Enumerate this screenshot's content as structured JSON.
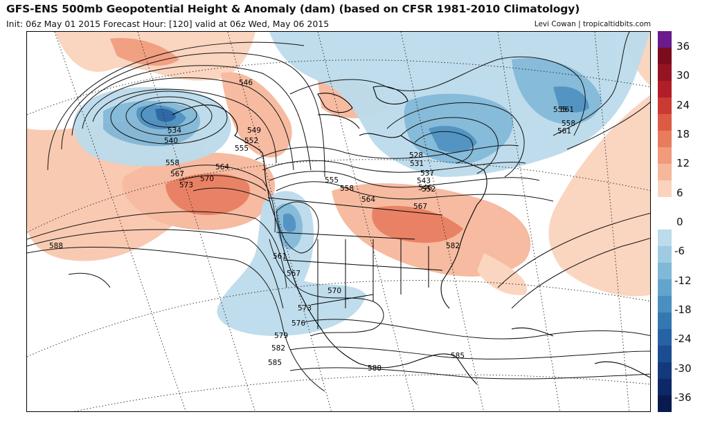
{
  "header": {
    "title": "GFS-ENS 500mb Geopotential Height & Anomaly (dam) (based on CFSR 1981-2010 Climatology)",
    "subtitle": "Init: 06z May 01 2015   Forecast Hour: [120]   valid at 06z Wed, May 06 2015",
    "credit": "Levi Cowan | tropicaltidbits.com"
  },
  "colorbar": {
    "ticks": [
      "36",
      "30",
      "24",
      "18",
      "12",
      "6",
      "0",
      "-6",
      "-12",
      "-18",
      "-24",
      "-30",
      "-36"
    ],
    "colors": [
      "#6a1a8a",
      "#7b0c1e",
      "#951424",
      "#b21e28",
      "#c93a33",
      "#dd5b45",
      "#e87c5c",
      "#f19b7c",
      "#f6b89c",
      "#fad3bd",
      "#ffffff",
      "#ffffff",
      "#bcdbeb",
      "#9fcbe2",
      "#80b8d8",
      "#63a4cd",
      "#4a8fc0",
      "#3478b2",
      "#2762a2",
      "#1c4d90",
      "#13397c",
      "#0c2866",
      "#081a4e"
    ]
  },
  "contour_labels": [
    "546",
    "534",
    "540",
    "549",
    "552",
    "555",
    "558",
    "564",
    "567",
    "570",
    "573",
    "588",
    "555",
    "558",
    "561",
    "528",
    "531",
    "537",
    "543",
    "546",
    "552",
    "555",
    "558",
    "561",
    "564",
    "567",
    "582",
    "561",
    "567",
    "570",
    "573",
    "576",
    "579",
    "582",
    "585",
    "588",
    "585"
  ],
  "map": {
    "region": "North America / North Pacific",
    "colors": {
      "positive": "#f6b89c",
      "positive_strong": "#e87c5c",
      "negative": "#9fcbe2",
      "negative_strong": "#4a8fc0",
      "negative_core": "#2762a2"
    }
  }
}
